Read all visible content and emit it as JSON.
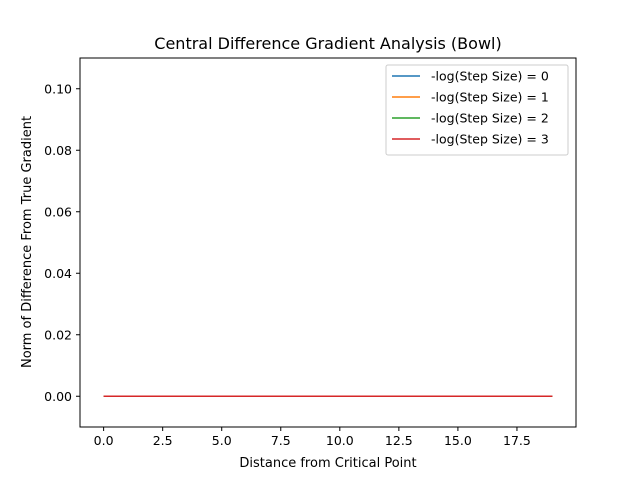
{
  "chart_data": {
    "type": "line",
    "title": "Central Difference Gradient Analysis (Bowl)",
    "xlabel": "Distance from Critical Point",
    "ylabel": "Norm of Difference From True Gradient",
    "xlim": [
      -1,
      20
    ],
    "ylim": [
      -0.01,
      0.11
    ],
    "xticks": [
      0.0,
      2.5,
      5.0,
      7.5,
      10.0,
      12.5,
      15.0,
      17.5
    ],
    "xtick_labels": [
      "0.0",
      "2.5",
      "5.0",
      "7.5",
      "10.0",
      "12.5",
      "15.0",
      "17.5"
    ],
    "yticks": [
      0.0,
      0.02,
      0.04,
      0.06,
      0.08,
      0.1
    ],
    "ytick_labels": [
      "0.00",
      "0.02",
      "0.04",
      "0.06",
      "0.08",
      "0.10"
    ],
    "grid": false,
    "legend_position": "top-right",
    "x": [
      0,
      19
    ],
    "series": [
      {
        "name": "-log(Step Size) = 0",
        "color": "#1f77b4",
        "values": [
          0.0,
          0.0
        ]
      },
      {
        "name": "-log(Step Size) = 1",
        "color": "#ff7f0e",
        "values": [
          0.0,
          0.0
        ]
      },
      {
        "name": "-log(Step Size) = 2",
        "color": "#2ca02c",
        "values": [
          0.0,
          0.0
        ]
      },
      {
        "name": "-log(Step Size) = 3",
        "color": "#d62728",
        "values": [
          0.0,
          0.0
        ]
      }
    ]
  }
}
